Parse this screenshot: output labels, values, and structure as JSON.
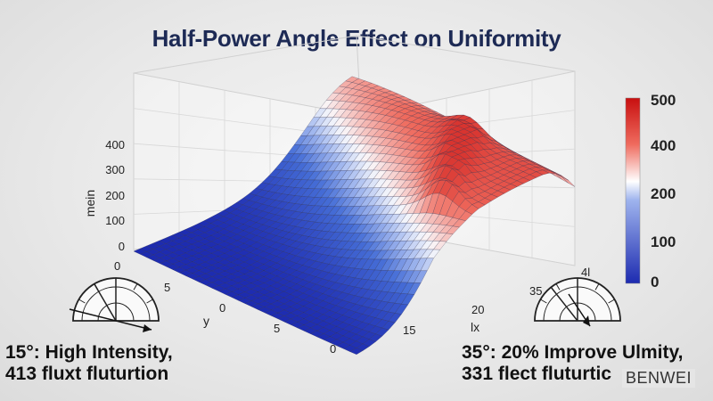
{
  "title": "Half-Power Angle Effect on Uniformity",
  "chart_data": {
    "type": "surface",
    "title": "Half-Power Angle Effect on Uniformity",
    "xlabel": "lx",
    "ylabel": "y",
    "zlabel": "mein",
    "x_ticks": [
      "15",
      "20",
      "35",
      "4l"
    ],
    "y_ticks": [
      "0",
      "5",
      "0",
      "5",
      "0"
    ],
    "z_ticks": [
      "0",
      "100",
      "200",
      "300",
      "400"
    ],
    "zlim": [
      0,
      450
    ],
    "colorbar": {
      "ticks": [
        "0",
        "100",
        "200",
        "400",
        "500"
      ],
      "range": [
        0,
        500
      ],
      "colors": [
        "#1d2bb0",
        "#ffffff",
        "#d01010"
      ]
    },
    "surface_description": {
      "low_region_value": 0,
      "peak_value": 420,
      "far_edge_value": 200,
      "peaks_along_ridge": [
        400,
        380,
        420,
        360,
        330,
        300,
        250
      ]
    }
  },
  "captions": {
    "left_line1": "15°: High Intensity,",
    "left_line2": "413 fluxt fluturtion",
    "right_line1": "35°: 20% Improve Ulmity,",
    "right_line2": "331 flect fluturtic"
  },
  "brand": "BENWEI"
}
